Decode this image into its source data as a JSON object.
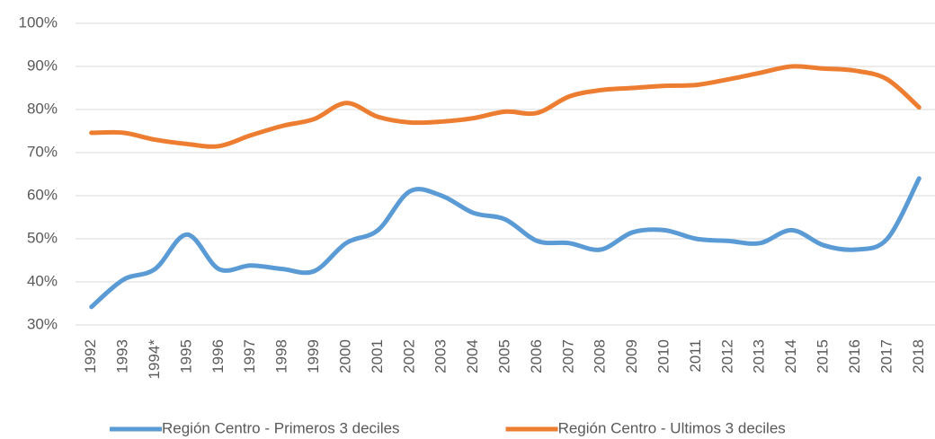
{
  "chart_data": {
    "type": "line",
    "categories": [
      "1992",
      "1993",
      "1994*",
      "1995",
      "1996",
      "1997",
      "1998",
      "1999",
      "2000",
      "2001",
      "2002",
      "2003",
      "2004",
      "2005",
      "2006",
      "2007",
      "2008",
      "2009",
      "2010",
      "2011",
      "2012",
      "2013",
      "2014",
      "2015",
      "2016",
      "2017",
      "2018"
    ],
    "series": [
      {
        "name": "Región Centro - Primeros 3 deciles",
        "color": "#5b9bd5",
        "values": [
          34.2,
          40.5,
          43,
          51,
          43,
          43.8,
          43,
          42.5,
          49,
          52,
          61,
          60,
          56,
          54.5,
          49.5,
          49,
          47.5,
          51.5,
          52,
          50,
          49.5,
          49,
          52,
          48.5,
          47.5,
          50,
          64
        ]
      },
      {
        "name": "Región Centro - Ultimos 3 deciles",
        "color": "#ed7d31",
        "values": [
          74.6,
          74.6,
          73,
          72,
          71.5,
          74,
          76.2,
          77.8,
          81.5,
          78.3,
          77,
          77.2,
          78,
          79.5,
          79.2,
          83,
          84.5,
          85,
          85.5,
          85.7,
          87,
          88.5,
          90,
          89.5,
          89,
          87,
          80.5
        ]
      }
    ],
    "ylim": [
      30,
      100
    ],
    "yticks": [
      {
        "value": 30,
        "label": "30%"
      },
      {
        "value": 40,
        "label": "40%"
      },
      {
        "value": 50,
        "label": "50%"
      },
      {
        "value": 60,
        "label": "60%"
      },
      {
        "value": 70,
        "label": "70%"
      },
      {
        "value": 80,
        "label": "80%"
      },
      {
        "value": 90,
        "label": "90%"
      },
      {
        "value": 100,
        "label": "100%"
      }
    ],
    "grid": true,
    "legend": "bottom"
  }
}
